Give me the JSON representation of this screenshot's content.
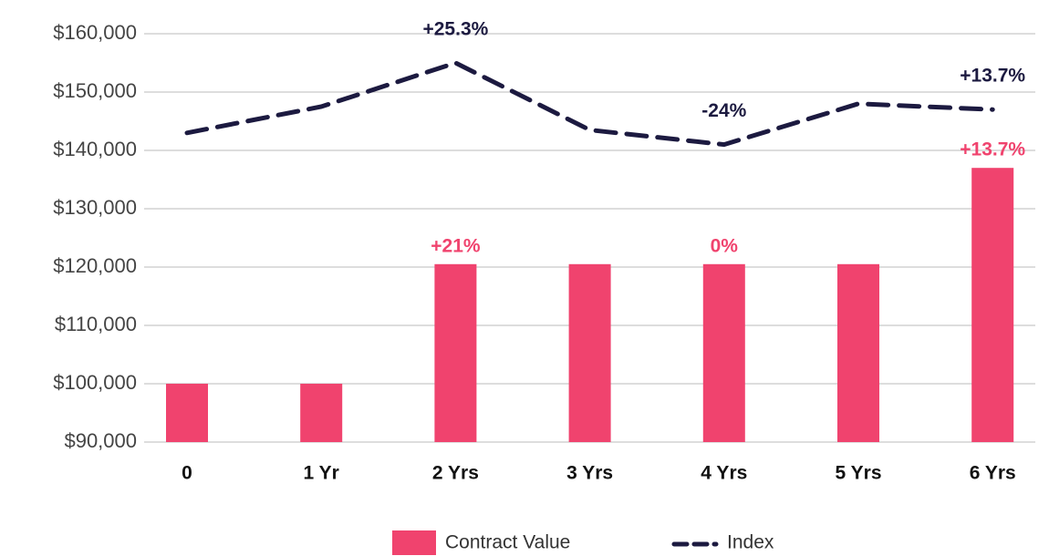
{
  "chart_data": {
    "type": "bar_line",
    "categories": [
      "0",
      "1 Yr",
      "2 Yrs",
      "3 Yrs",
      "4 Yrs",
      "5 Yrs",
      "6 Yrs"
    ],
    "series": [
      {
        "name": "Contract Value",
        "type": "bar",
        "color": "#f0436e",
        "values": [
          100000,
          100000,
          120500,
          120500,
          120500,
          120500,
          137000
        ],
        "labels": [
          null,
          null,
          "+21%",
          null,
          "0%",
          null,
          "+13.7%"
        ]
      },
      {
        "name": "Index",
        "type": "line",
        "color": "#1c1a40",
        "dashed": true,
        "values": [
          143000,
          147500,
          155000,
          143500,
          141000,
          148000,
          147000
        ],
        "labels": [
          null,
          null,
          "+25.3%",
          null,
          "-24%",
          null,
          "+13.7%"
        ]
      }
    ],
    "ylim": [
      90000,
      160000
    ],
    "yticks": [
      {
        "value": 90000,
        "label": "$90,000"
      },
      {
        "value": 100000,
        "label": "$100,000"
      },
      {
        "value": 110000,
        "label": "$110,000"
      },
      {
        "value": 120000,
        "label": "$120,000"
      },
      {
        "value": 130000,
        "label": "$130,000"
      },
      {
        "value": 140000,
        "label": "$140,000"
      },
      {
        "value": 150000,
        "label": "$150,000"
      },
      {
        "value": 160000,
        "label": "$160,000"
      }
    ],
    "grid": true,
    "legend": "bottom"
  }
}
